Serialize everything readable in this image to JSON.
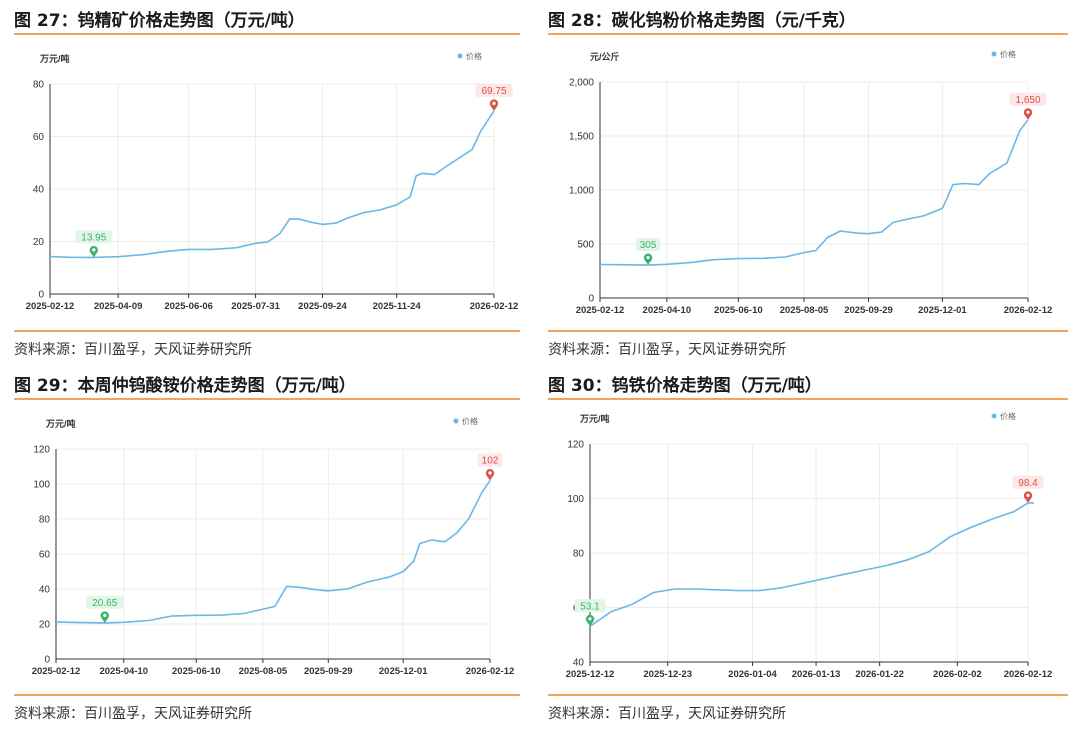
{
  "panels": [
    {
      "title": "图 27：钨精矿价格走势图（万元/吨）",
      "source": "资料来源：百川盈孚，天风证券研究所"
    },
    {
      "title": "图 28：碳化钨粉价格走势图（元/千克）",
      "source": "资料来源：百川盈孚，天风证券研究所"
    },
    {
      "title": "图 29：本周仲钨酸铵价格走势图（万元/吨）",
      "source": "资料来源：百川盈孚，天风证券研究所"
    },
    {
      "title": "图 30：钨铁价格走势图（万元/吨）",
      "source": "资料来源：百川盈孚，天风证券研究所"
    }
  ],
  "chart_data": [
    {
      "type": "line",
      "unit_label": "万元/吨",
      "legend": [
        "价格"
      ],
      "legend_position": "top-right",
      "ylim": [
        0,
        80
      ],
      "yticks": [
        "0",
        "20",
        "40",
        "60",
        "80"
      ],
      "xticks": [
        "2025-02-12",
        "2025-04-09",
        "2025-06-06",
        "2025-07-31",
        "2025-09-24",
        "2025-11-24",
        "2026-02-12"
      ],
      "series": [
        {
          "name": "价格",
          "color": "#6bb7e6",
          "x": [
            "2025-02-12",
            "2025-03-01",
            "2025-03-20",
            "2025-04-09",
            "2025-04-30",
            "2025-05-20",
            "2025-06-06",
            "2025-06-25",
            "2025-07-15",
            "2025-07-31",
            "2025-08-10",
            "2025-08-20",
            "2025-08-28",
            "2025-09-05",
            "2025-09-15",
            "2025-09-24",
            "2025-10-05",
            "2025-10-15",
            "2025-10-28",
            "2025-11-10",
            "2025-11-24",
            "2025-12-05",
            "2025-12-10",
            "2025-12-15",
            "2025-12-25",
            "2026-01-05",
            "2026-01-15",
            "2026-01-25",
            "2026-02-01",
            "2026-02-12"
          ],
          "y": [
            14.3,
            14.0,
            13.95,
            14.2,
            15.0,
            16.3,
            17.0,
            17.0,
            17.6,
            19.3,
            19.8,
            23,
            28.6,
            28.5,
            27.3,
            26.5,
            27,
            29,
            31,
            32,
            34,
            37,
            45,
            46,
            45.5,
            49,
            52,
            55,
            62,
            69.75
          ]
        }
      ],
      "annotations": [
        {
          "label": "13.95",
          "x": "2025-03-20",
          "y": 13.95,
          "kind": "min",
          "color": "#3cb371"
        },
        {
          "label": "69.75",
          "x": "2026-02-12",
          "y": 69.75,
          "kind": "max",
          "color": "#d9534f"
        }
      ]
    },
    {
      "type": "line",
      "unit_label": "元/公斤",
      "legend": [
        "价格"
      ],
      "legend_position": "top-right",
      "ylim": [
        0,
        2000
      ],
      "yticks": [
        "0",
        "500",
        "1,000",
        "1,500",
        "2,000"
      ],
      "xticks": [
        "2025-02-12",
        "2025-04-10",
        "2025-06-10",
        "2025-08-05",
        "2025-09-29",
        "2025-12-01",
        "2026-02-12"
      ],
      "series": [
        {
          "name": "价格",
          "color": "#6bb7e6",
          "x": [
            "2025-02-12",
            "2025-03-01",
            "2025-03-25",
            "2025-04-10",
            "2025-05-01",
            "2025-05-20",
            "2025-06-10",
            "2025-07-01",
            "2025-07-20",
            "2025-08-05",
            "2025-08-15",
            "2025-08-25",
            "2025-09-05",
            "2025-09-20",
            "2025-09-29",
            "2025-10-10",
            "2025-10-20",
            "2025-11-01",
            "2025-11-15",
            "2025-12-01",
            "2025-12-10",
            "2025-12-20",
            "2026-01-01",
            "2026-01-10",
            "2026-01-25",
            "2026-02-05",
            "2026-02-12"
          ],
          "y": [
            310,
            308,
            305,
            312,
            330,
            355,
            365,
            368,
            380,
            420,
            440,
            560,
            620,
            600,
            595,
            610,
            700,
            730,
            760,
            830,
            1050,
            1060,
            1050,
            1150,
            1250,
            1550,
            1650
          ]
        }
      ],
      "annotations": [
        {
          "label": "305",
          "x": "2025-03-25",
          "y": 305,
          "kind": "min",
          "color": "#3cb371"
        },
        {
          "label": "1,650",
          "x": "2026-02-12",
          "y": 1650,
          "kind": "max",
          "color": "#d9534f"
        }
      ]
    },
    {
      "type": "line",
      "unit_label": "万元/吨",
      "legend": [
        "价格"
      ],
      "legend_position": "top-right",
      "ylim": [
        0,
        120
      ],
      "yticks": [
        "0",
        "20",
        "40",
        "60",
        "80",
        "100",
        "120"
      ],
      "xticks": [
        "2025-02-12",
        "2025-04-10",
        "2025-06-10",
        "2025-08-05",
        "2025-09-29",
        "2025-12-01",
        "2026-02-12"
      ],
      "series": [
        {
          "name": "价格",
          "color": "#6bb7e6",
          "x": [
            "2025-02-12",
            "2025-03-01",
            "2025-03-25",
            "2025-04-10",
            "2025-05-01",
            "2025-05-20",
            "2025-06-10",
            "2025-07-01",
            "2025-07-20",
            "2025-08-05",
            "2025-08-15",
            "2025-08-25",
            "2025-09-05",
            "2025-09-20",
            "2025-09-29",
            "2025-10-15",
            "2025-11-01",
            "2025-11-20",
            "2025-12-01",
            "2025-12-10",
            "2025-12-15",
            "2025-12-25",
            "2026-01-05",
            "2026-01-15",
            "2026-01-25",
            "2026-02-05",
            "2026-02-12"
          ],
          "y": [
            21.2,
            20.9,
            20.65,
            21,
            22,
            24.5,
            25,
            25.1,
            26,
            28.5,
            30,
            41.5,
            41,
            39.5,
            39,
            40,
            44,
            47,
            50,
            56,
            66,
            68,
            67,
            72,
            80,
            95,
            102
          ]
        }
      ],
      "annotations": [
        {
          "label": "20.65",
          "x": "2025-03-25",
          "y": 20.65,
          "kind": "min",
          "color": "#3cb371"
        },
        {
          "label": "102",
          "x": "2026-02-12",
          "y": 102,
          "kind": "max",
          "color": "#d9534f"
        }
      ]
    },
    {
      "type": "line",
      "unit_label": "万元/吨",
      "legend": [
        "价格"
      ],
      "legend_position": "top-right",
      "ylim": [
        40,
        120
      ],
      "yticks": [
        "40",
        "60",
        "80",
        "100",
        "120"
      ],
      "xticks": [
        "2025-12-12",
        "2025-12-23",
        "2026-01-04",
        "2026-01-13",
        "2026-01-22",
        "2026-02-02",
        "2026-02-12"
      ],
      "series": [
        {
          "name": "价格",
          "color": "#6bb7e6",
          "x": [
            "2025-12-12",
            "2025-12-15",
            "2025-12-18",
            "2025-12-21",
            "2025-12-24",
            "2025-12-27",
            "2025-12-30",
            "2026-01-02",
            "2026-01-05",
            "2026-01-08",
            "2026-01-11",
            "2026-01-14",
            "2026-01-17",
            "2026-01-20",
            "2026-01-23",
            "2026-01-26",
            "2026-01-29",
            "2026-02-01",
            "2026-02-04",
            "2026-02-07",
            "2026-02-10",
            "2026-02-12",
            "2026-02-13"
          ],
          "y": [
            53.1,
            58.5,
            61.2,
            65.5,
            66.8,
            66.8,
            66.5,
            66.2,
            66.2,
            67.2,
            68.8,
            70.5,
            72.2,
            73.8,
            75.4,
            77.5,
            80.5,
            86,
            89.5,
            92.5,
            95.2,
            98.4,
            98.4
          ]
        }
      ],
      "annotations": [
        {
          "label": "53.1",
          "x": "2025-12-12",
          "y": 53.1,
          "kind": "min",
          "color": "#3cb371"
        },
        {
          "label": "98.4",
          "x": "2026-02-12",
          "y": 98.4,
          "kind": "max",
          "color": "#d9534f"
        }
      ]
    }
  ]
}
